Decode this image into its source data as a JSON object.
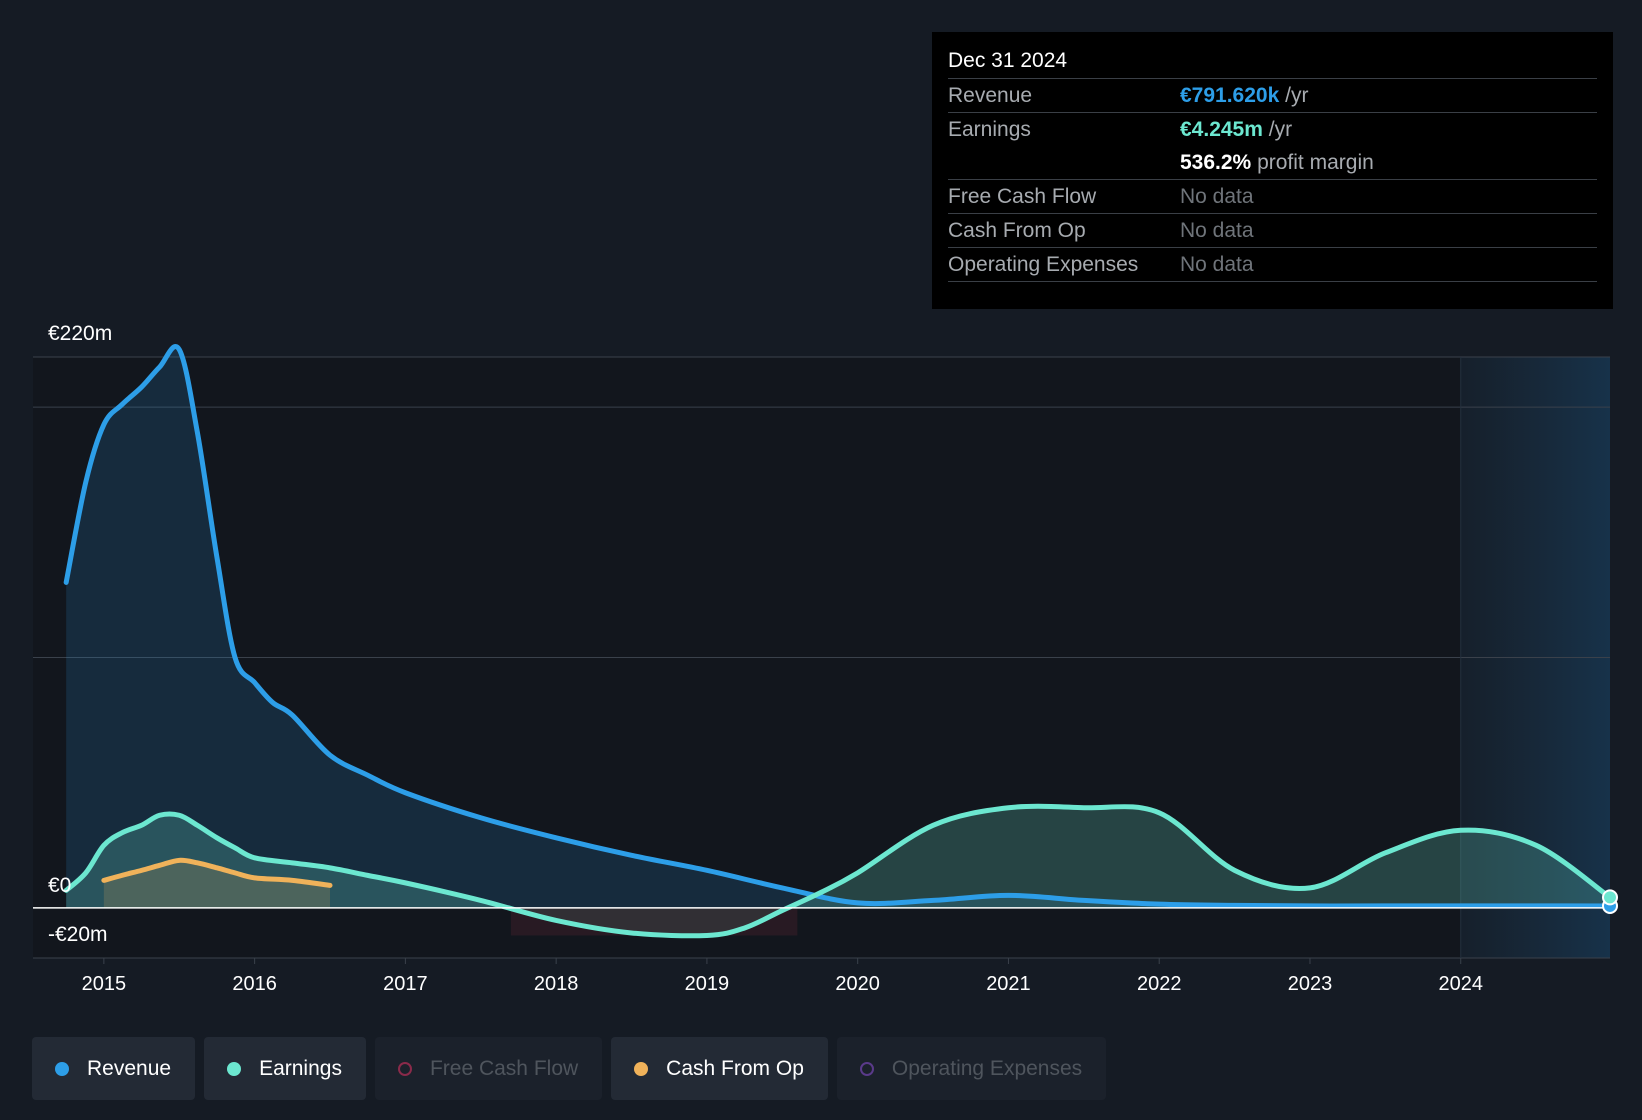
{
  "tooltip": {
    "date": "Dec 31 2024",
    "revenue_label": "Revenue",
    "revenue_value": "€791.620k",
    "revenue_unit": "/yr",
    "earnings_label": "Earnings",
    "earnings_value": "€4.245m",
    "earnings_unit": "/yr",
    "margin_value": "536.2%",
    "margin_text": "profit margin",
    "fcf_label": "Free Cash Flow",
    "fcf_value": "No data",
    "cfo_label": "Cash From Op",
    "cfo_value": "No data",
    "opex_label": "Operating Expenses",
    "opex_value": "No data"
  },
  "legend": [
    {
      "label": "Revenue",
      "color": "#2d9ee8",
      "active": true
    },
    {
      "label": "Earnings",
      "color": "#6ce7d0",
      "active": true
    },
    {
      "label": "Free Cash Flow",
      "color": "#8a2a4a",
      "active": false
    },
    {
      "label": "Cash From Op",
      "color": "#f0b25a",
      "active": true
    },
    {
      "label": "Operating Expenses",
      "color": "#5a3a8a",
      "active": false
    }
  ],
  "colors": {
    "revenue": "#2d9ee8",
    "earnings": "#6ce7d0",
    "cash_from_op": "#f0b25a",
    "negative_fill": "#3a1f28",
    "grid": "#3a414b",
    "zero_line": "#ffffff"
  },
  "chart_data": {
    "type": "area",
    "title": "",
    "y_top_label": "€220m",
    "y_zero_label": "€0",
    "y_bottom_label": "-€20m",
    "ylim": [
      -20,
      220
    ],
    "xlim": [
      2014.53,
      2024.99
    ],
    "forecast_start": 2024.0,
    "x_ticks": [
      2015,
      2016,
      2017,
      2018,
      2019,
      2020,
      2021,
      2022,
      2023,
      2024
    ],
    "x_tick_labels": [
      "2015",
      "2016",
      "2017",
      "2018",
      "2019",
      "2020",
      "2021",
      "2022",
      "2023",
      "2024"
    ],
    "series": [
      {
        "name": "Revenue",
        "x": [
          2014.75,
          2014.88,
          2015.0,
          2015.12,
          2015.25,
          2015.37,
          2015.5,
          2015.62,
          2015.75,
          2015.87,
          2016.0,
          2016.12,
          2016.25,
          2016.5,
          2016.75,
          2017.0,
          2017.5,
          2018.0,
          2018.5,
          2019.0,
          2019.5,
          2020.0,
          2020.5,
          2021.0,
          2021.5,
          2022.0,
          2022.5,
          2023.0,
          2023.5,
          2024.0,
          2024.5,
          2024.99
        ],
        "values": [
          130,
          170,
          193,
          201,
          208,
          216,
          223,
          190,
          140,
          100,
          90,
          82,
          77,
          61,
          53,
          46,
          36,
          28,
          21,
          15,
          8,
          2,
          3,
          5,
          3,
          1.5,
          1,
          0.8,
          0.8,
          0.8,
          0.8,
          0.79
        ]
      },
      {
        "name": "Earnings",
        "x": [
          2014.75,
          2014.88,
          2015.0,
          2015.12,
          2015.25,
          2015.37,
          2015.5,
          2015.62,
          2015.75,
          2015.87,
          2016.0,
          2016.25,
          2016.5,
          2016.75,
          2017.0,
          2017.5,
          2018.0,
          2018.5,
          2019.0,
          2019.25,
          2019.5,
          2019.75,
          2020.0,
          2020.5,
          2021.0,
          2021.5,
          2022.0,
          2022.5,
          2023.0,
          2023.5,
          2024.0,
          2024.5,
          2024.99
        ],
        "values": [
          7,
          14,
          25,
          30,
          33,
          37,
          37,
          33,
          28,
          24,
          20,
          18,
          16,
          13,
          10,
          3,
          -5,
          -10,
          -11,
          -8,
          -1,
          6,
          14,
          33,
          40,
          40,
          38,
          15,
          8,
          22,
          31,
          25,
          4.2
        ]
      },
      {
        "name": "Cash From Op",
        "x": [
          2015.0,
          2015.12,
          2015.25,
          2015.37,
          2015.5,
          2015.62,
          2015.75,
          2015.87,
          2016.0,
          2016.25,
          2016.5
        ],
        "values": [
          11,
          13,
          15,
          17,
          19,
          18,
          16,
          14,
          12,
          11,
          9
        ]
      }
    ]
  }
}
